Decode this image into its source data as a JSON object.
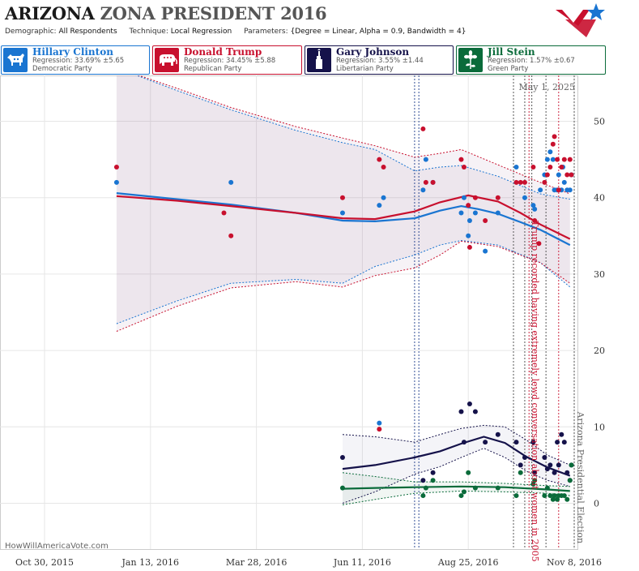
{
  "header": {
    "title_state": "ARIZONA",
    "title_rest": "ZONA PRESIDENT 2016",
    "params": [
      {
        "label": "Demographic:",
        "value": "All Respondents"
      },
      {
        "label": "Technique:",
        "value": "Local Regression"
      },
      {
        "label": "Parameters:",
        "value": "{Degree = Linear, Alpha = 0.9, Bandwidth = 4}"
      }
    ]
  },
  "candidates": [
    {
      "name": "Hillary Clinton",
      "regression": "Regression: 33.69% ±5.65",
      "party": "Democratic Party",
      "color": "#1a75d1",
      "icon": "donkey-icon"
    },
    {
      "name": "Donald Trump",
      "regression": "Regression: 34.45% ±5.88",
      "party": "Republican Party",
      "color": "#c8102e",
      "icon": "elephant-icon"
    },
    {
      "name": "Gary Johnson",
      "regression": "Regression: 3.55% ±1.44",
      "party": "Libertarian Party",
      "color": "#15124a",
      "icon": "liberty-icon"
    },
    {
      "name": "Jill Stein",
      "regression": "Regression: 1.57% ±0.67",
      "party": "Green Party",
      "color": "#0a6b3a",
      "icon": "flower-icon"
    }
  ],
  "watermark": "HowWillAmericaVote.com",
  "chart_data": {
    "type": "scatter",
    "date_label": "May 1, 2025",
    "x_ticks": [
      "2015-10-30",
      "2016-01-13",
      "2016-03-28",
      "2016-06-11",
      "2016-08-25",
      "2016-11-08"
    ],
    "x_tick_labels": [
      "Oct 30, 2015",
      "Jan 13, 2016",
      "Mar 28, 2016",
      "Jun 11, 2016",
      "Aug 25, 2016",
      "Nov 8, 2016"
    ],
    "xlim": [
      "2015-10-30",
      "2016-11-08"
    ],
    "ylim": [
      -6,
      56
    ],
    "y_ticks": [
      0,
      10,
      20,
      30,
      40,
      50
    ],
    "grid": true,
    "event_lines": [
      {
        "date": "2016-07-18",
        "color": "#1a3a8a"
      },
      {
        "date": "2016-07-21",
        "color": "#1a3a8a"
      },
      {
        "date": "2016-09-26",
        "color": "#444"
      },
      {
        "date": "2016-10-04",
        "color": "#444"
      },
      {
        "date": "2016-10-07",
        "color": "#c8102e"
      },
      {
        "date": "2016-10-09",
        "color": "#444"
      },
      {
        "date": "2016-10-19",
        "color": "#444"
      },
      {
        "date": "2016-10-28",
        "color": "#c8102e"
      },
      {
        "date": "2016-11-08",
        "color": "#444"
      }
    ],
    "annotations": [
      {
        "text": "Trump recorded having extremely lewd conversation about women in 2005",
        "date": "2016-10-07",
        "y": 37,
        "color": "#c8102e"
      },
      {
        "text": "Arizona Presidential Election",
        "date": "2016-11-08",
        "y": 12,
        "color": "#666"
      }
    ],
    "series": [
      {
        "name": "Hillary Clinton",
        "color": "#1a75d1",
        "points": [
          [
            "2015-12-20",
            42
          ],
          [
            "2016-03-10",
            42
          ],
          [
            "2016-05-28",
            38
          ],
          [
            "2016-06-23",
            39
          ],
          [
            "2016-06-26",
            40
          ],
          [
            "2016-06-23",
            10.5
          ],
          [
            "2016-07-24",
            41
          ],
          [
            "2016-07-26",
            45
          ],
          [
            "2016-07-31",
            42
          ],
          [
            "2016-08-20",
            38
          ],
          [
            "2016-08-22",
            40
          ],
          [
            "2016-08-26",
            37
          ],
          [
            "2016-08-30",
            38
          ],
          [
            "2016-08-25",
            35
          ],
          [
            "2016-09-06",
            33
          ],
          [
            "2016-09-15",
            38
          ],
          [
            "2016-09-28",
            44
          ],
          [
            "2016-10-04",
            40
          ],
          [
            "2016-10-10",
            39
          ],
          [
            "2016-10-11",
            38.5
          ],
          [
            "2016-10-15",
            41
          ],
          [
            "2016-10-18",
            43
          ],
          [
            "2016-10-20",
            45
          ],
          [
            "2016-10-22",
            46
          ],
          [
            "2016-10-24",
            45
          ],
          [
            "2016-10-25",
            41
          ],
          [
            "2016-10-27",
            41
          ],
          [
            "2016-10-28",
            43
          ],
          [
            "2016-10-30",
            41
          ],
          [
            "2016-10-31",
            44
          ],
          [
            "2016-11-01",
            42
          ],
          [
            "2016-11-03",
            41
          ],
          [
            "2016-11-05",
            41
          ],
          [
            "2016-11-06",
            43
          ]
        ],
        "line": [
          [
            "2015-12-20",
            40.6
          ],
          [
            "2016-02-01",
            39.8
          ],
          [
            "2016-03-10",
            39.1
          ],
          [
            "2016-04-25",
            38.0
          ],
          [
            "2016-05-28",
            37.0
          ],
          [
            "2016-06-20",
            36.9
          ],
          [
            "2016-07-18",
            37.3
          ],
          [
            "2016-08-05",
            38.3
          ],
          [
            "2016-08-20",
            38.9
          ],
          [
            "2016-09-01",
            38.5
          ],
          [
            "2016-09-15",
            37.9
          ],
          [
            "2016-10-01",
            36.8
          ],
          [
            "2016-10-15",
            35.8
          ],
          [
            "2016-11-05",
            33.8
          ]
        ],
        "upper": [
          [
            "2015-12-20",
            57
          ],
          [
            "2016-02-01",
            54
          ],
          [
            "2016-03-10",
            51.5
          ],
          [
            "2016-04-25",
            48.8
          ],
          [
            "2016-05-28",
            47.2
          ],
          [
            "2016-06-20",
            46.3
          ],
          [
            "2016-07-18",
            43.5
          ],
          [
            "2016-08-05",
            44
          ],
          [
            "2016-08-20",
            44.2
          ],
          [
            "2016-09-15",
            42.8
          ],
          [
            "2016-10-15",
            40.5
          ],
          [
            "2016-11-05",
            39.8
          ]
        ],
        "lower": [
          [
            "2015-12-20",
            23.5
          ],
          [
            "2016-02-01",
            26.5
          ],
          [
            "2016-03-10",
            28.8
          ],
          [
            "2016-04-25",
            29.3
          ],
          [
            "2016-05-28",
            28.8
          ],
          [
            "2016-06-20",
            31
          ],
          [
            "2016-07-18",
            32.5
          ],
          [
            "2016-08-05",
            33.8
          ],
          [
            "2016-08-20",
            34.4
          ],
          [
            "2016-09-15",
            33.8
          ],
          [
            "2016-10-15",
            31.5
          ],
          [
            "2016-11-05",
            28.3
          ]
        ]
      },
      {
        "name": "Donald Trump",
        "color": "#c8102e",
        "points": [
          [
            "2015-12-20",
            44
          ],
          [
            "2016-03-10",
            35
          ],
          [
            "2016-03-05",
            38
          ],
          [
            "2016-05-28",
            40
          ],
          [
            "2016-06-23",
            45
          ],
          [
            "2016-06-26",
            44
          ],
          [
            "2016-06-23",
            9.7
          ],
          [
            "2016-07-24",
            49
          ],
          [
            "2016-07-26",
            42
          ],
          [
            "2016-07-31",
            42
          ],
          [
            "2016-08-20",
            45
          ],
          [
            "2016-08-22",
            44
          ],
          [
            "2016-08-25",
            39
          ],
          [
            "2016-08-26",
            33.5
          ],
          [
            "2016-08-30",
            40
          ],
          [
            "2016-09-06",
            37
          ],
          [
            "2016-09-15",
            40
          ],
          [
            "2016-09-28",
            42
          ],
          [
            "2016-10-01",
            42
          ],
          [
            "2016-10-04",
            42
          ],
          [
            "2016-10-10",
            44
          ],
          [
            "2016-10-11",
            37
          ],
          [
            "2016-10-14",
            34
          ],
          [
            "2016-10-18",
            42
          ],
          [
            "2016-10-20",
            43
          ],
          [
            "2016-10-22",
            44
          ],
          [
            "2016-10-24",
            47
          ],
          [
            "2016-10-25",
            48
          ],
          [
            "2016-10-27",
            45
          ],
          [
            "2016-10-28",
            41
          ],
          [
            "2016-10-30",
            44
          ],
          [
            "2016-11-01",
            45
          ],
          [
            "2016-11-03",
            43
          ],
          [
            "2016-11-05",
            45
          ],
          [
            "2016-11-06",
            43
          ]
        ],
        "line": [
          [
            "2015-12-20",
            40.2
          ],
          [
            "2016-02-01",
            39.6
          ],
          [
            "2016-03-10",
            38.9
          ],
          [
            "2016-04-25",
            38.0
          ],
          [
            "2016-05-28",
            37.3
          ],
          [
            "2016-06-20",
            37.2
          ],
          [
            "2016-07-18",
            38.2
          ],
          [
            "2016-08-05",
            39.4
          ],
          [
            "2016-08-25",
            40.3
          ],
          [
            "2016-09-15",
            39.5
          ],
          [
            "2016-10-01",
            38.0
          ],
          [
            "2016-10-15",
            36.5
          ],
          [
            "2016-11-05",
            34.6
          ]
        ],
        "upper": [
          [
            "2015-12-20",
            57
          ],
          [
            "2016-02-01",
            54.3
          ],
          [
            "2016-03-10",
            51.8
          ],
          [
            "2016-04-25",
            49.3
          ],
          [
            "2016-05-28",
            47.8
          ],
          [
            "2016-06-20",
            46.8
          ],
          [
            "2016-07-18",
            45.3
          ],
          [
            "2016-08-05",
            45.8
          ],
          [
            "2016-08-20",
            46.3
          ],
          [
            "2016-09-15",
            44.3
          ],
          [
            "2016-10-15",
            42
          ],
          [
            "2016-11-05",
            40.5
          ]
        ],
        "lower": [
          [
            "2015-12-20",
            22.5
          ],
          [
            "2016-02-01",
            25.8
          ],
          [
            "2016-03-10",
            28.2
          ],
          [
            "2016-04-25",
            29
          ],
          [
            "2016-05-28",
            28.3
          ],
          [
            "2016-06-20",
            29.8
          ],
          [
            "2016-07-18",
            30.8
          ],
          [
            "2016-08-05",
            32.5
          ],
          [
            "2016-08-20",
            34.3
          ],
          [
            "2016-09-15",
            33.6
          ],
          [
            "2016-10-15",
            31.5
          ],
          [
            "2016-11-05",
            28.8
          ]
        ]
      },
      {
        "name": "Gary Johnson",
        "color": "#15124a",
        "points": [
          [
            "2016-05-28",
            6
          ],
          [
            "2016-07-24",
            3
          ],
          [
            "2016-07-31",
            4
          ],
          [
            "2016-08-20",
            12
          ],
          [
            "2016-08-22",
            8
          ],
          [
            "2016-08-26",
            13
          ],
          [
            "2016-08-30",
            12
          ],
          [
            "2016-09-06",
            8
          ],
          [
            "2016-09-15",
            9
          ],
          [
            "2016-09-28",
            8
          ],
          [
            "2016-10-01",
            5
          ],
          [
            "2016-10-04",
            6
          ],
          [
            "2016-10-10",
            8
          ],
          [
            "2016-10-11",
            4
          ],
          [
            "2016-10-18",
            6
          ],
          [
            "2016-10-20",
            4.5
          ],
          [
            "2016-10-22",
            5
          ],
          [
            "2016-10-25",
            4
          ],
          [
            "2016-10-27",
            8
          ],
          [
            "2016-10-28",
            5
          ],
          [
            "2016-10-30",
            9
          ],
          [
            "2016-11-01",
            8
          ],
          [
            "2016-11-03",
            4
          ],
          [
            "2016-11-05",
            3
          ],
          [
            "2016-11-06",
            5
          ]
        ],
        "line": [
          [
            "2016-05-28",
            4.5
          ],
          [
            "2016-06-20",
            5.0
          ],
          [
            "2016-07-18",
            6.0
          ],
          [
            "2016-08-05",
            6.8
          ],
          [
            "2016-08-20",
            7.8
          ],
          [
            "2016-09-05",
            8.7
          ],
          [
            "2016-09-20",
            7.9
          ],
          [
            "2016-10-05",
            6.1
          ],
          [
            "2016-10-20",
            4.7
          ],
          [
            "2016-11-05",
            3.6
          ]
        ],
        "upper": [
          [
            "2016-05-28",
            9
          ],
          [
            "2016-06-20",
            8.7
          ],
          [
            "2016-07-18",
            8
          ],
          [
            "2016-08-05",
            9
          ],
          [
            "2016-08-20",
            9.8
          ],
          [
            "2016-09-05",
            10.2
          ],
          [
            "2016-09-20",
            10
          ],
          [
            "2016-10-05",
            8.3
          ],
          [
            "2016-10-20",
            6.3
          ],
          [
            "2016-11-05",
            5
          ]
        ],
        "lower": [
          [
            "2016-05-28",
            0
          ],
          [
            "2016-06-20",
            1.5
          ],
          [
            "2016-07-18",
            3.8
          ],
          [
            "2016-08-05",
            4.8
          ],
          [
            "2016-08-20",
            6
          ],
          [
            "2016-09-05",
            7.2
          ],
          [
            "2016-09-20",
            6
          ],
          [
            "2016-10-05",
            4.2
          ],
          [
            "2016-10-20",
            3
          ],
          [
            "2016-11-05",
            2.2
          ]
        ]
      },
      {
        "name": "Jill Stein",
        "color": "#0a6b3a",
        "points": [
          [
            "2016-05-28",
            2
          ],
          [
            "2016-07-24",
            1
          ],
          [
            "2016-07-26",
            2
          ],
          [
            "2016-07-31",
            3
          ],
          [
            "2016-08-20",
            1
          ],
          [
            "2016-08-22",
            1.5
          ],
          [
            "2016-08-25",
            4
          ],
          [
            "2016-08-30",
            2
          ],
          [
            "2016-09-15",
            2
          ],
          [
            "2016-09-28",
            1
          ],
          [
            "2016-10-01",
            4
          ],
          [
            "2016-10-10",
            2.5
          ],
          [
            "2016-10-11",
            3
          ],
          [
            "2016-10-18",
            1
          ],
          [
            "2016-10-20",
            2
          ],
          [
            "2016-10-22",
            1
          ],
          [
            "2016-10-24",
            0.5
          ],
          [
            "2016-10-25",
            1
          ],
          [
            "2016-10-27",
            0.5
          ],
          [
            "2016-10-28",
            1
          ],
          [
            "2016-10-30",
            1
          ],
          [
            "2016-11-01",
            1
          ],
          [
            "2016-11-03",
            0.5
          ],
          [
            "2016-11-05",
            3
          ],
          [
            "2016-11-06",
            5
          ]
        ],
        "line": [
          [
            "2016-05-28",
            1.9
          ],
          [
            "2016-06-20",
            2.0
          ],
          [
            "2016-07-18",
            2.1
          ],
          [
            "2016-08-20",
            2.2
          ],
          [
            "2016-09-20",
            2.1
          ],
          [
            "2016-10-20",
            1.8
          ],
          [
            "2016-11-05",
            1.6
          ]
        ],
        "upper": [
          [
            "2016-05-28",
            4
          ],
          [
            "2016-06-20",
            3.5
          ],
          [
            "2016-07-18",
            2.8
          ],
          [
            "2016-08-20",
            2.8
          ],
          [
            "2016-09-20",
            2.6
          ],
          [
            "2016-10-20",
            2.3
          ],
          [
            "2016-11-05",
            2.2
          ]
        ],
        "lower": [
          [
            "2016-05-28",
            -0.2
          ],
          [
            "2016-06-20",
            0.5
          ],
          [
            "2016-07-18",
            1.3
          ],
          [
            "2016-08-20",
            1.6
          ],
          [
            "2016-09-20",
            1.5
          ],
          [
            "2016-10-20",
            1.3
          ],
          [
            "2016-11-05",
            1.0
          ]
        ]
      }
    ]
  }
}
